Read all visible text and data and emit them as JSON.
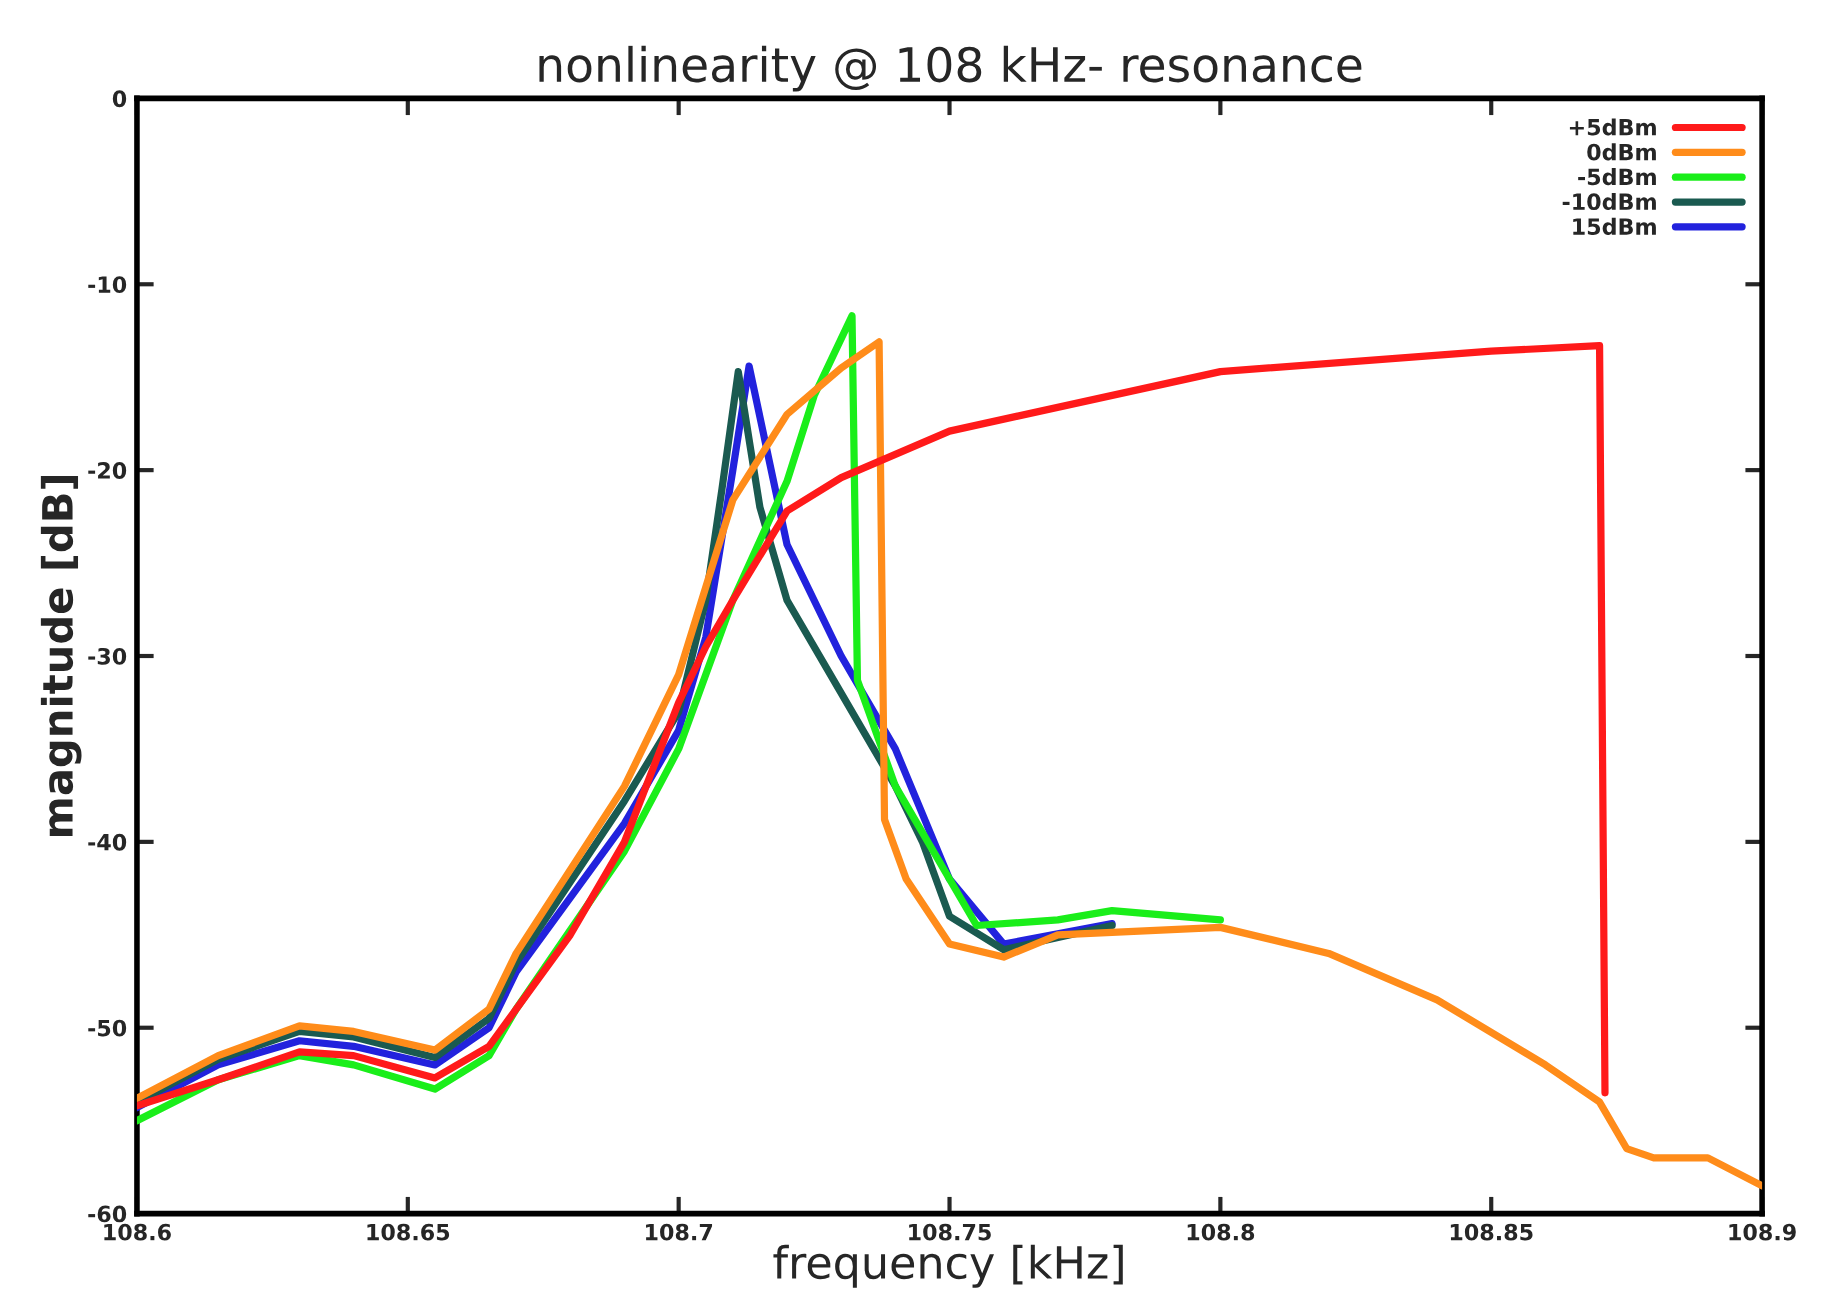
{
  "chart_data": {
    "type": "line",
    "title": "nonlinearity @ 108 kHz- resonance",
    "xlabel": "frequency [kHz]",
    "ylabel": "magnitude [dB]",
    "xlim": [
      108.6,
      108.9
    ],
    "xticks": [
      108.6,
      108.65,
      108.7,
      108.75,
      108.8,
      108.85,
      108.9
    ],
    "ylim": [
      -60,
      0
    ],
    "yticks": [
      -60,
      -50,
      -40,
      -30,
      -20,
      -10,
      0
    ],
    "grid": false,
    "legend": "top right",
    "marker": "none",
    "line_style": "solid",
    "series": [
      {
        "name": "+5dBm",
        "color": "#ff1a1a",
        "x": [
          108.6,
          108.615,
          108.63,
          108.64,
          108.655,
          108.665,
          108.68,
          108.69,
          108.7,
          108.705,
          108.71,
          108.72,
          108.73,
          108.75,
          108.8,
          108.85,
          108.87,
          108.871
        ],
        "values": [
          -54.2,
          -52.8,
          -51.3,
          -51.5,
          -52.7,
          -51,
          -45,
          -40,
          -32.5,
          -29.5,
          -27,
          -22.2,
          -20.4,
          -17.9,
          -14.7,
          -13.6,
          -13.3,
          -53.5
        ]
      },
      {
        "name": "0dBm",
        "color": "#ff8c1a",
        "x": [
          108.6,
          108.615,
          108.63,
          108.64,
          108.655,
          108.665,
          108.67,
          108.69,
          108.7,
          108.71,
          108.72,
          108.73,
          108.737,
          108.738,
          108.742,
          108.75,
          108.76,
          108.77,
          108.8,
          108.82,
          108.84,
          108.86,
          108.87,
          108.875,
          108.88,
          108.89,
          108.9
        ],
        "values": [
          -53.8,
          -51.5,
          -49.9,
          -50.2,
          -51.2,
          -49,
          -46,
          -37,
          -31,
          -21.6,
          -17,
          -14.5,
          -13.1,
          -38.8,
          -42,
          -45.5,
          -46.2,
          -45,
          -44.6,
          -46,
          -48.5,
          -52,
          -54,
          -56.5,
          -57,
          -57,
          -58.5
        ]
      },
      {
        "name": "-5dBm",
        "color": "#1aee1a",
        "x": [
          108.6,
          108.615,
          108.63,
          108.64,
          108.655,
          108.665,
          108.67,
          108.69,
          108.7,
          108.71,
          108.72,
          108.725,
          108.732,
          108.733,
          108.74,
          108.755,
          108.77,
          108.78,
          108.8
        ],
        "values": [
          -55,
          -52.8,
          -51.5,
          -52,
          -53.3,
          -51.5,
          -49,
          -40.5,
          -35,
          -27,
          -20.6,
          -16,
          -11.7,
          -31.3,
          -37,
          -44.5,
          -44.2,
          -43.7,
          -44.2
        ]
      },
      {
        "name": "-10dBm",
        "color": "#1a5a50",
        "x": [
          108.6,
          108.615,
          108.63,
          108.64,
          108.655,
          108.665,
          108.67,
          108.69,
          108.7,
          108.705,
          108.708,
          108.711,
          108.715,
          108.72,
          108.73,
          108.74,
          108.745,
          108.75,
          108.76,
          108.78
        ],
        "values": [
          -54,
          -51.7,
          -50.2,
          -50.5,
          -51.6,
          -49.5,
          -46.5,
          -37.8,
          -33,
          -27,
          -21,
          -14.7,
          -22,
          -27,
          -32,
          -37,
          -40,
          -44,
          -45.8,
          -44.5
        ]
      },
      {
        "name": "15dBm",
        "color": "#2222dd",
        "x": [
          108.6,
          108.615,
          108.63,
          108.64,
          108.655,
          108.665,
          108.67,
          108.69,
          108.7,
          108.705,
          108.71,
          108.713,
          108.72,
          108.73,
          108.74,
          108.75,
          108.76,
          108.78
        ],
        "values": [
          -54.3,
          -52,
          -50.7,
          -51,
          -52,
          -50,
          -47,
          -39,
          -34,
          -29,
          -20,
          -14.4,
          -24,
          -30,
          -35,
          -42,
          -45.5,
          -44.4
        ]
      }
    ]
  }
}
